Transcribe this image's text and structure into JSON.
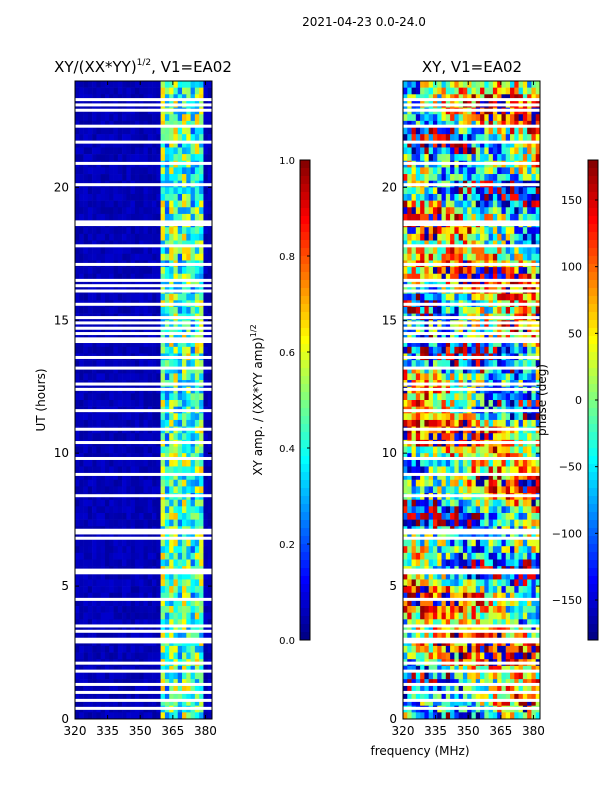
{
  "suptitle": "2021-04-23 0.0-24.0",
  "xlabel_common": "frequency (MHz)",
  "chart_data": [
    {
      "type": "heatmap",
      "title_main": "XY/(XX*YY)",
      "title_sup": "1/2",
      "title_tail": ", V1=EA02",
      "ylabel": "UT (hours)",
      "x_range": [
        320,
        383
      ],
      "y_range": [
        0,
        24
      ],
      "x_ticks": [
        320,
        335,
        350,
        365,
        380
      ],
      "y_ticks": [
        0,
        5,
        10,
        15,
        20
      ],
      "colormap": "jet",
      "colorbar": {
        "label_main": "XY amp. / (XX*YY amp)",
        "label_sup": "1/2",
        "range": [
          0.0,
          1.0
        ],
        "ticks": [
          "0.0",
          "0.2",
          "0.4",
          "0.6",
          "0.8",
          "1.0"
        ],
        "tick_values": [
          0.0,
          0.2,
          0.4,
          0.6,
          0.8,
          1.0
        ]
      },
      "background_value": 0.03,
      "active_band_mhz": [
        360,
        380
      ],
      "active_value_range": [
        0.25,
        0.7
      ],
      "blank_rows_ut": [
        0.4,
        0.7,
        1.0,
        1.3,
        1.8,
        2.1,
        2.9,
        3.0,
        3.3,
        3.5,
        4.5,
        5.5,
        5.6,
        6.8,
        7.0,
        7.1,
        8.4,
        9.2,
        9.8,
        10.4,
        10.9,
        11.6,
        12.4,
        12.6,
        13.2,
        13.6,
        14.2,
        14.3,
        14.5,
        14.7,
        14.9,
        15.1,
        15.6,
        16.1,
        16.3,
        16.5,
        17.1,
        17.8,
        18.6,
        18.7,
        20.1,
        20.9,
        21.7,
        22.3,
        22.9,
        23.1,
        23.3
      ]
    },
    {
      "type": "heatmap",
      "title_main": "XY, V1=EA02",
      "x_range": [
        320,
        383
      ],
      "y_range": [
        0,
        24
      ],
      "x_ticks": [
        320,
        335,
        350,
        365,
        380
      ],
      "y_ticks": [
        0,
        5,
        10,
        15,
        20
      ],
      "colormap": "jet",
      "colorbar": {
        "label_main": "phase (deg)",
        "range": [
          -180,
          180
        ],
        "ticks": [
          "−150",
          "−100",
          "−50",
          "0",
          "50",
          "100",
          "150"
        ],
        "tick_values": [
          -150,
          -100,
          -50,
          0,
          50,
          100,
          150
        ]
      },
      "value_range": [
        -180,
        180
      ],
      "blank_rows_ut": [
        0.4,
        0.7,
        1.0,
        1.3,
        1.8,
        2.1,
        2.9,
        3.0,
        3.3,
        3.5,
        4.5,
        5.5,
        5.6,
        6.8,
        7.0,
        7.1,
        8.4,
        9.2,
        9.8,
        10.4,
        10.9,
        11.6,
        12.4,
        12.6,
        13.2,
        13.6,
        14.2,
        14.3,
        14.5,
        14.7,
        14.9,
        15.1,
        15.6,
        16.1,
        16.3,
        16.5,
        17.1,
        17.8,
        18.6,
        18.7,
        20.1,
        20.9,
        21.7,
        22.3,
        22.9,
        23.1,
        23.3
      ]
    }
  ]
}
